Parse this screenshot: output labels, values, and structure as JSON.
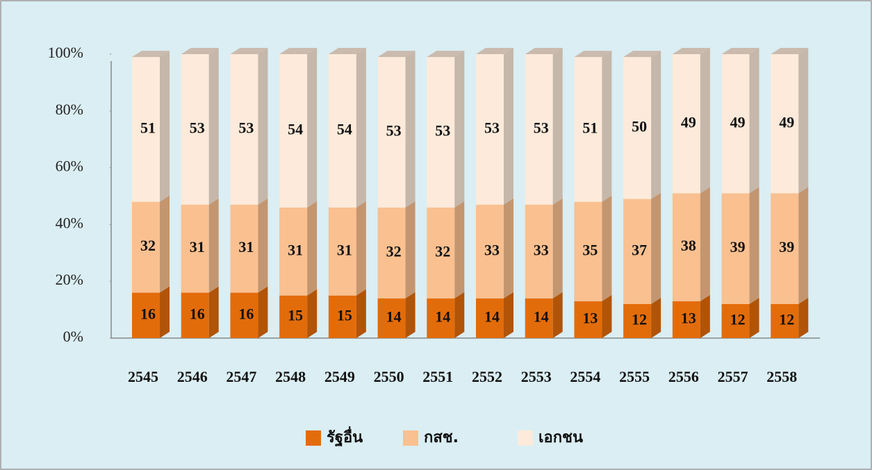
{
  "chart_data": {
    "type": "stacked_bar_3d",
    "categories": [
      "2545",
      "2546",
      "2547",
      "2548",
      "2549",
      "2550",
      "2551",
      "2552",
      "2553",
      "2554",
      "2555",
      "2556",
      "2557",
      "2558"
    ],
    "series": [
      {
        "name": "รัฐอื่น",
        "color": "#e36c0a",
        "values": [
          16,
          16,
          16,
          15,
          15,
          14,
          14,
          14,
          14,
          13,
          12,
          13,
          12,
          12
        ]
      },
      {
        "name": "กสช.",
        "color": "#fac090",
        "values": [
          32,
          31,
          31,
          31,
          31,
          32,
          32,
          33,
          33,
          35,
          37,
          38,
          39,
          39
        ]
      },
      {
        "name": "เอกชน",
        "color": "#fdeada",
        "values": [
          51,
          53,
          53,
          54,
          54,
          53,
          53,
          53,
          53,
          51,
          50,
          49,
          49,
          49
        ]
      }
    ],
    "ylim": [
      0,
      100
    ],
    "yticks": [
      {
        "value": 0,
        "label": "0%"
      },
      {
        "value": 20,
        "label": "20%"
      },
      {
        "value": 40,
        "label": "40%"
      },
      {
        "value": 60,
        "label": "60%"
      },
      {
        "value": 80,
        "label": "80%"
      },
      {
        "value": 100,
        "label": "100%"
      }
    ],
    "legend": "bottom"
  }
}
